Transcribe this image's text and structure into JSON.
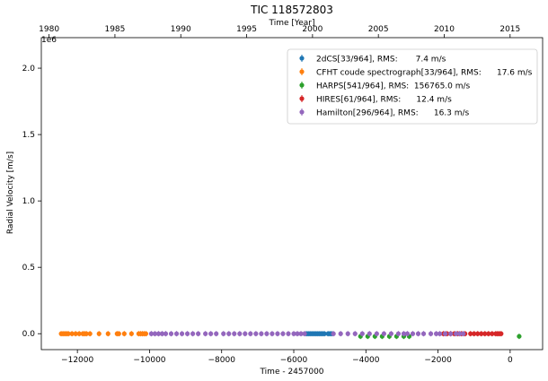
{
  "chart_data": {
    "type": "scatter",
    "title": "TIC 118572803",
    "xlabel": "Time - 2457000",
    "ylabel": "Radial Velocity [m/s]",
    "top_xlabel": "Time [Year]",
    "y_offset_label": "1e6",
    "xlim": [
      -13000,
      900
    ],
    "ylim": [
      -120000,
      2230000
    ],
    "x_ticks": [
      -12000,
      -10000,
      -8000,
      -6000,
      -4000,
      -2000,
      0
    ],
    "x_tick_labels": [
      "−12000",
      "−10000",
      "−8000",
      "−6000",
      "−4000",
      "−2000",
      "0"
    ],
    "y_ticks": [
      0,
      500000,
      1000000,
      1500000,
      2000000
    ],
    "y_tick_labels": [
      "0.0",
      "0.5",
      "1.0",
      "1.5",
      "2.0"
    ],
    "top_ticks": [
      1980,
      1985,
      1990,
      1995,
      2000,
      2005,
      2010,
      2015
    ],
    "grid": false,
    "legend_position": "top-right",
    "series": [
      {
        "name": "2dCS[33/964], RMS:       7.4 m/s",
        "color": "#1f77b4",
        "x": [
          -5650,
          -5600,
          -5550,
          -5500,
          -5450,
          -5400,
          -5350,
          -5300,
          -5250,
          -5200,
          -5150,
          -5050,
          -5000,
          -4950
        ],
        "y": [
          0,
          0,
          0,
          0,
          0,
          0,
          0,
          0,
          0,
          0,
          0,
          0,
          0,
          0
        ]
      },
      {
        "name": "CFHT coude spectrograph[33/964], RMS:      17.6 m/s",
        "color": "#ff7f0e",
        "x": [
          -12450,
          -12400,
          -12350,
          -12300,
          -12250,
          -12150,
          -12050,
          -11950,
          -11850,
          -11800,
          -11750,
          -11650,
          -11400,
          -11150,
          -10900,
          -10850,
          -10700,
          -10500,
          -10300,
          -10250,
          -10200,
          -10150,
          -10100
        ],
        "y": [
          0,
          0,
          0,
          0,
          0,
          0,
          0,
          0,
          0,
          0,
          0,
          0,
          0,
          0,
          0,
          0,
          0,
          0,
          0,
          0,
          0,
          0,
          0
        ]
      },
      {
        "name": "HARPS[541/964], RMS:  156765.0 m/s",
        "color": "#2ca02c",
        "x": [
          -4150,
          -3950,
          -3750,
          -3550,
          -3350,
          -3150,
          -2950,
          -2800,
          250
        ],
        "y": [
          -20000,
          -20000,
          -20000,
          -20000,
          -20000,
          -20000,
          -20000,
          -20000,
          -20000
        ]
      },
      {
        "name": "HIRES[61/964], RMS:      12.4 m/s",
        "color": "#d62728",
        "x": [
          -1850,
          -1750,
          -1650,
          -1550,
          -1450,
          -1350,
          -1250,
          -1100,
          -1000,
          -900,
          -800,
          -700,
          -600,
          -500,
          -400,
          -350,
          -300,
          -250
        ],
        "y": [
          0,
          0,
          0,
          0,
          0,
          0,
          0,
          0,
          0,
          0,
          0,
          0,
          0,
          0,
          0,
          0,
          0,
          0
        ]
      },
      {
        "name": "Hamilton[296/964], RMS:      16.3 m/s",
        "color": "#9467bd",
        "x": [
          -9950,
          -9850,
          -9750,
          -9650,
          -9550,
          -9400,
          -9250,
          -9100,
          -8950,
          -8800,
          -8650,
          -8450,
          -8300,
          -8150,
          -7950,
          -7800,
          -7650,
          -7500,
          -7350,
          -7200,
          -7050,
          -6900,
          -6750,
          -6600,
          -6450,
          -6300,
          -6150,
          -6000,
          -5900,
          -5800,
          -5700,
          -4900,
          -4700,
          -4500,
          -4300,
          -4100,
          -3900,
          -3700,
          -3500,
          -3300,
          -3100,
          -2950,
          -2850,
          -2700,
          -2550,
          -2400,
          -2200,
          -2050,
          -1950,
          -1800,
          -1650,
          -1500,
          -1400,
          -1300
        ],
        "y": [
          0,
          0,
          0,
          0,
          0,
          0,
          0,
          0,
          0,
          0,
          0,
          0,
          0,
          0,
          0,
          0,
          0,
          0,
          0,
          0,
          0,
          0,
          0,
          0,
          0,
          0,
          0,
          0,
          0,
          0,
          0,
          0,
          0,
          0,
          0,
          0,
          0,
          0,
          0,
          0,
          0,
          0,
          0,
          0,
          0,
          0,
          0,
          0,
          0,
          0,
          0,
          0,
          0,
          0
        ]
      }
    ]
  }
}
